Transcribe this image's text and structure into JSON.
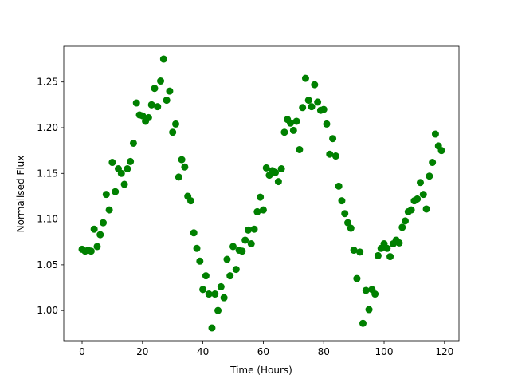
{
  "chart_data": {
    "type": "scatter",
    "xlabel": "Time (Hours)",
    "ylabel": "Normalised Flux",
    "color": "#008000",
    "xlim": [
      -6.07,
      124.8
    ],
    "ylim": [
      0.967,
      1.289
    ],
    "xticks": [
      0,
      20,
      40,
      60,
      80,
      100,
      120
    ],
    "yticks": [
      {
        "value": 1.0,
        "label": "1.00"
      },
      1.05,
      {
        "value": 1.1,
        "label": "1.10"
      },
      1.15,
      {
        "value": 1.2,
        "label": "1.20"
      },
      1.25
    ],
    "x": [
      0,
      1,
      2,
      3,
      4,
      5,
      6,
      7,
      8,
      9,
      10,
      11,
      12,
      13,
      14,
      15,
      16,
      17,
      18,
      19,
      20,
      21,
      22,
      23,
      24,
      25,
      26,
      27,
      28,
      29,
      30,
      31,
      32,
      33,
      34,
      35,
      36,
      37,
      38,
      39,
      40,
      41,
      42,
      43,
      44,
      45,
      46,
      47,
      48,
      49,
      50,
      51,
      52,
      53,
      54,
      55,
      56,
      57,
      58,
      59,
      60,
      61,
      62,
      63,
      64,
      65,
      66,
      67,
      68,
      69,
      70,
      71,
      72,
      73,
      74,
      75,
      76,
      77,
      78,
      79,
      80,
      81,
      82,
      83,
      84,
      85,
      86,
      87,
      88,
      89,
      90,
      91,
      92,
      93,
      94,
      95,
      96,
      97,
      98,
      99,
      100,
      101,
      102,
      103,
      104,
      105,
      106,
      107,
      108,
      109,
      110,
      111,
      112,
      113,
      114,
      115,
      116,
      117,
      118,
      119
    ],
    "values": [
      1.067,
      1.065,
      1.066,
      1.065,
      1.089,
      1.07,
      1.083,
      1.096,
      1.127,
      1.11,
      1.162,
      1.13,
      1.155,
      1.15,
      1.138,
      1.155,
      1.163,
      1.183,
      1.227,
      1.214,
      1.213,
      1.207,
      1.211,
      1.225,
      1.243,
      1.223,
      1.251,
      1.275,
      1.23,
      1.24,
      1.195,
      1.204,
      1.146,
      1.165,
      1.157,
      1.125,
      1.12,
      1.085,
      1.068,
      1.054,
      1.023,
      1.038,
      1.018,
      0.981,
      1.018,
      1.0,
      1.026,
      1.014,
      1.056,
      1.038,
      1.07,
      1.045,
      1.066,
      1.065,
      1.077,
      1.088,
      1.073,
      1.089,
      1.108,
      1.124,
      1.11,
      1.156,
      1.148,
      1.153,
      1.151,
      1.141,
      1.155,
      1.195,
      1.209,
      1.205,
      1.197,
      1.207,
      1.176,
      1.222,
      1.254,
      1.23,
      1.223,
      1.247,
      1.228,
      1.219,
      1.22,
      1.204,
      1.171,
      1.188,
      1.169,
      1.136,
      1.12,
      1.106,
      1.096,
      1.09,
      1.066,
      1.035,
      1.064,
      0.986,
      1.022,
      1.001,
      1.023,
      1.018,
      1.06,
      1.068,
      1.073,
      1.068,
      1.059,
      1.073,
      1.077,
      1.074,
      1.091,
      1.098,
      1.108,
      1.11,
      1.12,
      1.122,
      1.14,
      1.127,
      1.111,
      1.147,
      1.162,
      1.193,
      1.18,
      1.175
    ]
  }
}
